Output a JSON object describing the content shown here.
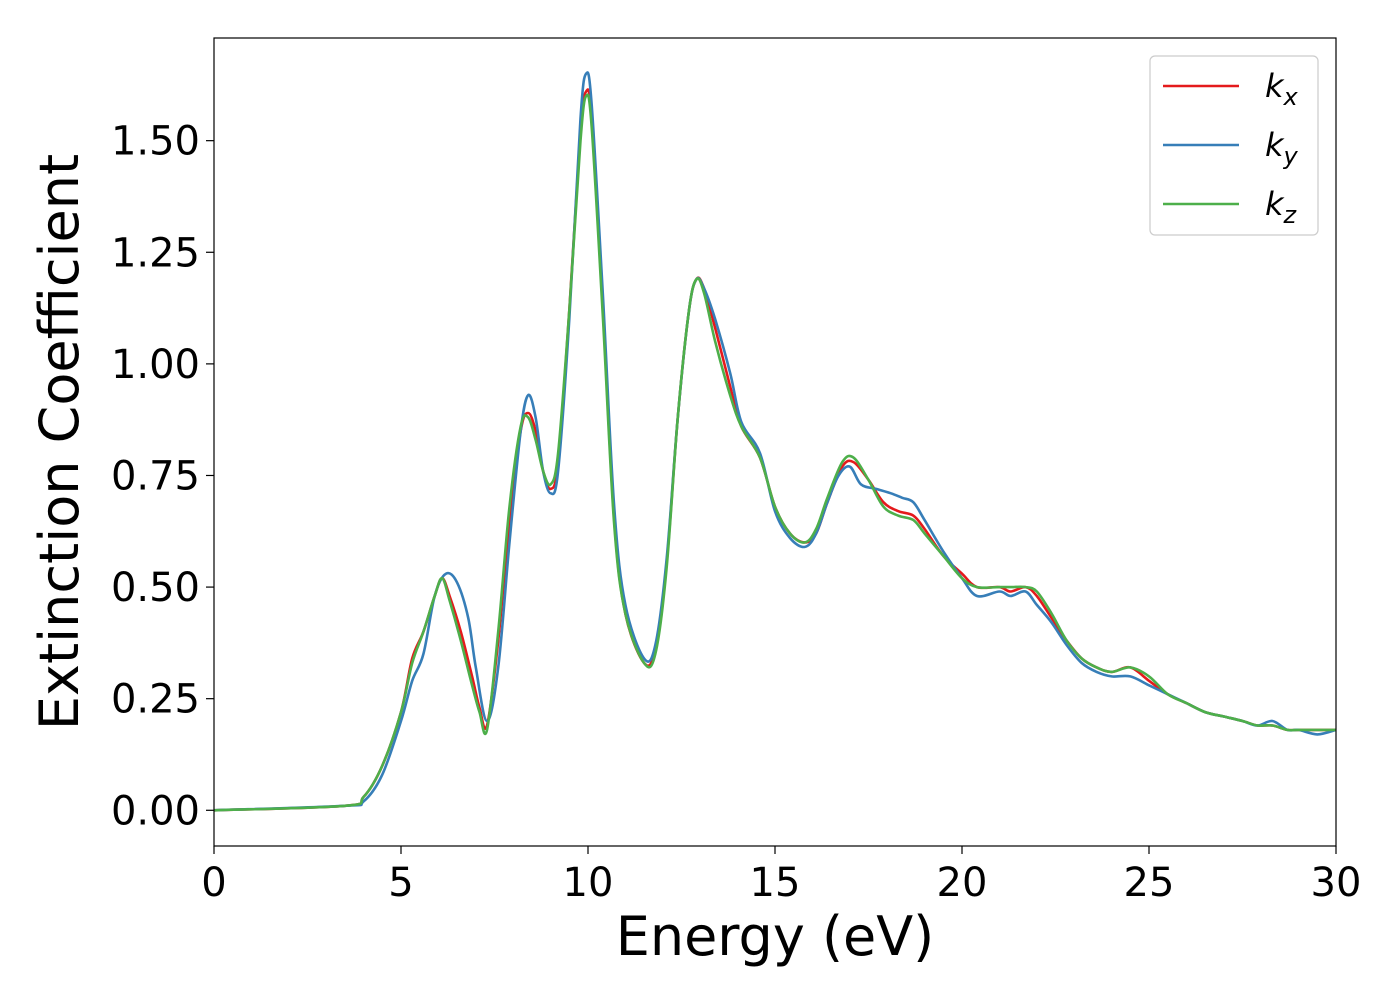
{
  "chart_data": {
    "type": "line",
    "xlabel": "Energy (eV)",
    "ylabel": "Extinction Coefficient",
    "xlim": [
      0,
      30
    ],
    "ylim": [
      -0.08,
      1.73
    ],
    "xticks": [
      "0",
      "5",
      "10",
      "15",
      "20",
      "25",
      "30"
    ],
    "yticks": [
      "0.00",
      "0.25",
      "0.50",
      "0.75",
      "1.00",
      "1.25",
      "1.50"
    ],
    "grid": false,
    "legend": "top-right",
    "series": [
      {
        "name": "k_x",
        "legend_main": "k",
        "legend_sub": "x",
        "color": "#e41a1c",
        "x": [
          0,
          3.5,
          4,
          4.5,
          5,
          5.3,
          5.6,
          5.9,
          6.1,
          6.3,
          6.6,
          6.9,
          7.1,
          7.3,
          7.6,
          7.9,
          8.2,
          8.4,
          8.6,
          8.8,
          9.0,
          9.2,
          9.5,
          9.8,
          9.95,
          10.1,
          10.4,
          10.7,
          11.0,
          11.5,
          11.8,
          12.1,
          12.4,
          12.7,
          12.9,
          13.1,
          13.4,
          13.8,
          14.1,
          14.6,
          15.0,
          15.4,
          15.8,
          16.1,
          16.4,
          16.8,
          17.1,
          17.5,
          17.9,
          18.3,
          18.7,
          19.0,
          19.5,
          20.0,
          20.4,
          21.0,
          21.3,
          21.7,
          22.0,
          22.4,
          22.8,
          23.2,
          23.6,
          24.0,
          24.5,
          25.0,
          25.5,
          26.0,
          26.5,
          27.0,
          27.5,
          27.9,
          28.3,
          28.7,
          29.0,
          29.5,
          30.0
        ],
        "y": [
          0.0,
          0.01,
          0.03,
          0.1,
          0.22,
          0.34,
          0.4,
          0.48,
          0.52,
          0.48,
          0.4,
          0.3,
          0.23,
          0.19,
          0.38,
          0.65,
          0.85,
          0.89,
          0.85,
          0.76,
          0.72,
          0.78,
          1.12,
          1.52,
          1.61,
          1.55,
          1.12,
          0.65,
          0.44,
          0.33,
          0.36,
          0.55,
          0.88,
          1.12,
          1.19,
          1.17,
          1.08,
          0.95,
          0.86,
          0.79,
          0.68,
          0.62,
          0.6,
          0.62,
          0.69,
          0.77,
          0.78,
          0.74,
          0.69,
          0.67,
          0.66,
          0.63,
          0.57,
          0.53,
          0.5,
          0.5,
          0.49,
          0.5,
          0.48,
          0.43,
          0.38,
          0.34,
          0.32,
          0.31,
          0.32,
          0.29,
          0.26,
          0.24,
          0.22,
          0.21,
          0.2,
          0.19,
          0.19,
          0.18,
          0.18,
          0.18,
          0.18
        ]
      },
      {
        "name": "k_y",
        "legend_main": "k",
        "legend_sub": "y",
        "color": "#377eb8",
        "x": [
          0,
          3.5,
          4,
          4.5,
          5,
          5.3,
          5.6,
          5.9,
          6.2,
          6.5,
          6.8,
          7.0,
          7.3,
          7.6,
          7.9,
          8.2,
          8.4,
          8.6,
          8.8,
          9.0,
          9.2,
          9.5,
          9.8,
          9.95,
          10.1,
          10.4,
          10.7,
          11.0,
          11.5,
          11.8,
          12.1,
          12.4,
          12.7,
          12.9,
          13.1,
          13.4,
          13.8,
          14.1,
          14.6,
          15.0,
          15.4,
          15.8,
          16.1,
          16.4,
          16.7,
          17.0,
          17.3,
          17.7,
          18.1,
          18.4,
          18.7,
          19.0,
          19.5,
          20.0,
          20.4,
          21.0,
          21.3,
          21.7,
          22.0,
          22.4,
          22.8,
          23.2,
          23.6,
          24.0,
          24.5,
          25.0,
          25.5,
          26.0,
          26.5,
          27.0,
          27.5,
          27.9,
          28.3,
          28.7,
          29.0,
          29.5,
          30.0
        ],
        "y": [
          0.0,
          0.01,
          0.02,
          0.08,
          0.2,
          0.29,
          0.35,
          0.48,
          0.53,
          0.51,
          0.43,
          0.32,
          0.2,
          0.32,
          0.6,
          0.85,
          0.93,
          0.88,
          0.76,
          0.71,
          0.76,
          1.1,
          1.55,
          1.65,
          1.58,
          1.15,
          0.68,
          0.46,
          0.34,
          0.37,
          0.56,
          0.88,
          1.12,
          1.19,
          1.17,
          1.1,
          0.98,
          0.87,
          0.8,
          0.67,
          0.61,
          0.59,
          0.62,
          0.69,
          0.75,
          0.77,
          0.73,
          0.72,
          0.71,
          0.7,
          0.69,
          0.65,
          0.58,
          0.52,
          0.48,
          0.49,
          0.48,
          0.49,
          0.46,
          0.42,
          0.37,
          0.33,
          0.31,
          0.3,
          0.3,
          0.28,
          0.26,
          0.24,
          0.22,
          0.21,
          0.2,
          0.19,
          0.2,
          0.18,
          0.18,
          0.17,
          0.18
        ]
      },
      {
        "name": "k_z",
        "legend_main": "k",
        "legend_sub": "z",
        "color": "#4daf4a",
        "x": [
          0,
          3.5,
          4,
          4.5,
          5,
          5.3,
          5.6,
          5.9,
          6.1,
          6.3,
          6.6,
          6.9,
          7.1,
          7.3,
          7.6,
          7.9,
          8.2,
          8.4,
          8.6,
          8.8,
          9.0,
          9.2,
          9.5,
          9.8,
          9.95,
          10.1,
          10.4,
          10.7,
          11.0,
          11.5,
          11.8,
          12.1,
          12.4,
          12.7,
          12.9,
          13.1,
          13.4,
          13.8,
          14.1,
          14.6,
          15.0,
          15.4,
          15.8,
          16.1,
          16.4,
          16.8,
          17.1,
          17.5,
          17.9,
          18.3,
          18.7,
          19.0,
          19.5,
          20.0,
          20.4,
          21.0,
          21.3,
          21.7,
          22.0,
          22.4,
          22.8,
          23.2,
          23.6,
          24.0,
          24.5,
          25.0,
          25.5,
          26.0,
          26.5,
          27.0,
          27.5,
          27.9,
          28.3,
          28.7,
          29.0,
          29.5,
          30.0
        ],
        "y": [
          0.0,
          0.01,
          0.03,
          0.1,
          0.22,
          0.33,
          0.4,
          0.48,
          0.52,
          0.47,
          0.38,
          0.28,
          0.22,
          0.18,
          0.4,
          0.68,
          0.86,
          0.88,
          0.83,
          0.76,
          0.73,
          0.8,
          1.12,
          1.5,
          1.6,
          1.53,
          1.1,
          0.64,
          0.44,
          0.33,
          0.35,
          0.54,
          0.88,
          1.12,
          1.19,
          1.16,
          1.05,
          0.93,
          0.86,
          0.79,
          0.68,
          0.62,
          0.6,
          0.63,
          0.7,
          0.78,
          0.79,
          0.74,
          0.68,
          0.66,
          0.65,
          0.62,
          0.57,
          0.52,
          0.5,
          0.5,
          0.5,
          0.5,
          0.49,
          0.44,
          0.38,
          0.34,
          0.32,
          0.31,
          0.32,
          0.3,
          0.26,
          0.24,
          0.22,
          0.21,
          0.2,
          0.19,
          0.19,
          0.18,
          0.18,
          0.18,
          0.18
        ]
      }
    ]
  }
}
